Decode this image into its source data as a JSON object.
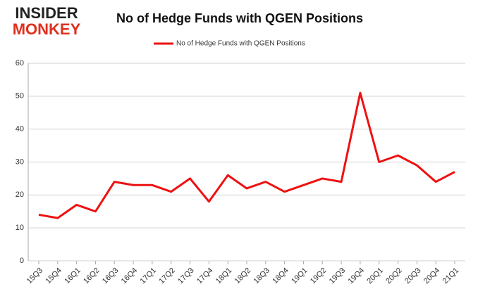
{
  "logo": {
    "top": "INSIDER",
    "bottom": "MONKEY"
  },
  "chart_data": {
    "type": "line",
    "title": "No of Hedge Funds with QGEN Positions",
    "categories": [
      "15Q3",
      "15Q4",
      "16Q1",
      "16Q2",
      "16Q3",
      "16Q4",
      "17Q1",
      "17Q2",
      "17Q3",
      "17Q4",
      "18Q1",
      "18Q2",
      "18Q3",
      "18Q4",
      "19Q1",
      "19Q2",
      "19Q3",
      "19Q4",
      "20Q1",
      "20Q2",
      "20Q3",
      "20Q4",
      "21Q1"
    ],
    "series": [
      {
        "name": "No of Hedge Funds with QGEN Positions",
        "color": "#ee1111",
        "values": [
          14,
          13,
          17,
          15,
          24,
          23,
          23,
          21,
          25,
          18,
          26,
          22,
          24,
          21,
          23,
          25,
          24,
          51,
          30,
          32,
          29,
          24,
          27
        ]
      }
    ],
    "ylim": [
      0,
      60
    ],
    "yticks": [
      0,
      10,
      20,
      30,
      40,
      50,
      60
    ],
    "grid": true,
    "legend": "top"
  }
}
